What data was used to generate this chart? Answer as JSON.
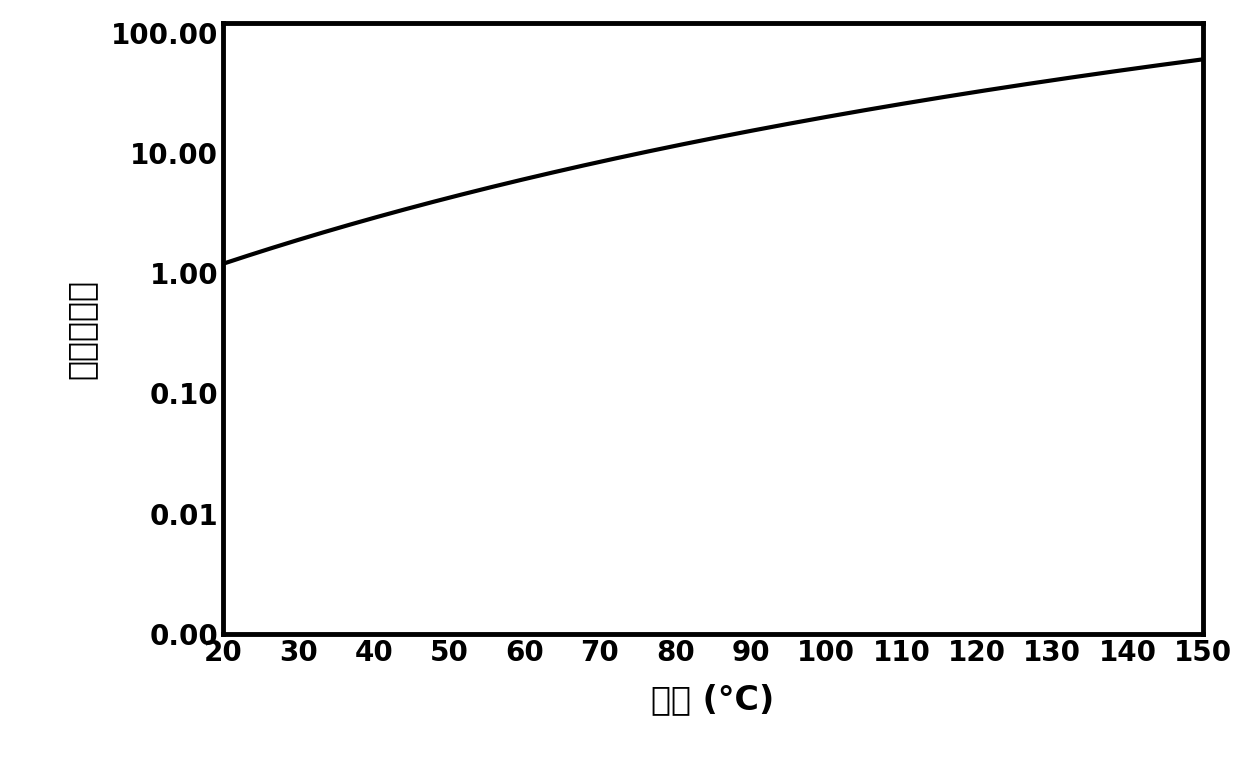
{
  "xlabel": "温度 (°C)",
  "ylabel": "压力（托）",
  "xmin": 20,
  "xmax": 150,
  "xticks": [
    20,
    30,
    40,
    50,
    60,
    70,
    80,
    90,
    100,
    110,
    120,
    130,
    140,
    150
  ],
  "yticks": [
    0.001,
    0.01,
    0.1,
    1.0,
    10.0,
    100.0
  ],
  "yticklabels": [
    "0.00",
    "0.01",
    "0.10",
    "1.00",
    "10.00",
    "100.00"
  ],
  "ymin": 0.001,
  "ymax": 120.0,
  "line_color": "#000000",
  "line_width": 3.0,
  "background_color": "#ffffff",
  "xlabel_fontsize": 24,
  "ylabel_fontsize": 24,
  "tick_fontsize": 20,
  "antoine_A": 4.655,
  "antoine_B": 1006.8,
  "antoine_C": 200.0
}
